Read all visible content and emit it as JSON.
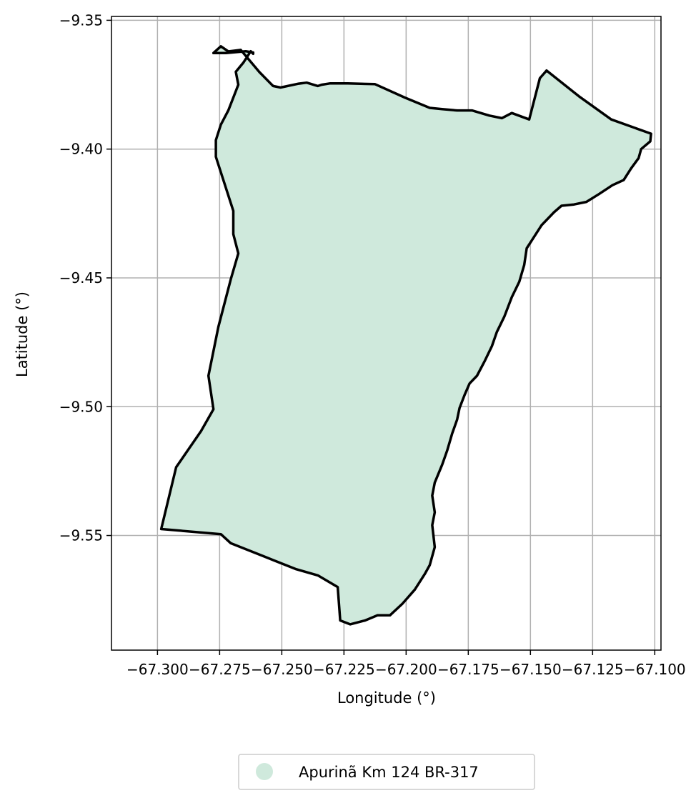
{
  "chart_data": {
    "type": "map",
    "xlabel": "Longitude (°)",
    "ylabel": "Latitude (°)",
    "xlim": [
      -67.3185,
      -67.0975
    ],
    "ylim": [
      -9.5945,
      -9.3485
    ],
    "x_ticks": [
      -67.3,
      -67.275,
      -67.25,
      -67.225,
      -67.2,
      -67.175,
      -67.15,
      -67.125,
      -67.1
    ],
    "x_tick_labels": [
      "−67.300",
      "−67.275",
      "−67.250",
      "−67.225",
      "−67.200",
      "−67.175",
      "−67.150",
      "−67.125",
      "−67.100"
    ],
    "y_ticks": [
      -9.35,
      -9.4,
      -9.45,
      -9.5,
      -9.55
    ],
    "y_tick_labels": [
      "−9.35",
      "−9.40",
      "−9.45",
      "−9.50",
      "−9.55"
    ],
    "grid": true,
    "legend": {
      "placement": "bottom-center",
      "entries": [
        {
          "label": "Apurinã Km 124 BR-317",
          "color": "#cfe9dc"
        }
      ]
    },
    "colors": {
      "fill": "#cfe9dc",
      "boundary": "#000000",
      "grid": "#b0b0b0"
    },
    "series": [
      {
        "name": "Apurinã Km 124 BR-317",
        "lon": [
          -67.2775,
          -67.2745,
          -67.2715,
          -67.2665,
          -67.259,
          -67.2535,
          -67.2505,
          -67.2432,
          -67.24,
          -67.2355,
          -67.234,
          -67.2305,
          -67.2235,
          -67.2125,
          -67.2005,
          -67.1905,
          -67.1855,
          -67.1795,
          -67.1735,
          -67.1665,
          -67.1615,
          -67.1575,
          -67.1505,
          -67.1462,
          -67.1435,
          -67.1305,
          -67.1175,
          -67.1015,
          -67.1018,
          -67.1055,
          -67.1065,
          -67.1095,
          -67.1125,
          -67.117,
          -67.1225,
          -67.1275,
          -67.1325,
          -67.1375,
          -67.1405,
          -67.1455,
          -67.1495,
          -67.1515,
          -67.1525,
          -67.1545,
          -67.1575,
          -67.1605,
          -67.1635,
          -67.1655,
          -67.1685,
          -67.1715,
          -67.1745,
          -67.1765,
          -67.1785,
          -67.1795,
          -67.1815,
          -67.1835,
          -67.1855,
          -67.1885,
          -67.1895,
          -67.1885,
          -67.1895,
          -67.1885,
          -67.1905,
          -67.1925,
          -67.1965,
          -67.2015,
          -67.2065,
          -67.2115,
          -67.2165,
          -67.2225,
          -67.2265,
          -67.2275,
          -67.2355,
          -67.2445,
          -67.2575,
          -67.2705,
          -67.2745,
          -67.2985,
          -67.2925,
          -67.2825,
          -67.2775,
          -67.2795,
          -67.2755,
          -67.2705,
          -67.2675,
          -67.2695,
          -67.2695,
          -67.2765,
          -67.2765,
          -67.2745,
          -67.2715,
          -67.2695,
          -67.2675,
          -67.2685,
          -67.2655,
          -67.2625,
          -67.2615,
          -67.2615,
          -67.2645,
          -67.2725,
          -67.2775
        ],
        "lat": [
          -9.3627,
          -9.3601,
          -9.3621,
          -9.3615,
          -9.3701,
          -9.3755,
          -9.3761,
          -9.3746,
          -9.3742,
          -9.3755,
          -9.375,
          -9.3745,
          -9.3745,
          -9.3748,
          -9.38,
          -9.384,
          -9.3845,
          -9.385,
          -9.385,
          -9.387,
          -9.388,
          -9.386,
          -9.3885,
          -9.3725,
          -9.3695,
          -9.3795,
          -9.3885,
          -9.394,
          -9.397,
          -9.4,
          -9.4035,
          -9.4075,
          -9.412,
          -9.414,
          -9.4175,
          -9.4205,
          -9.4215,
          -9.422,
          -9.4245,
          -9.4295,
          -9.4355,
          -9.4385,
          -9.445,
          -9.4515,
          -9.4575,
          -9.465,
          -9.471,
          -9.4765,
          -9.4825,
          -9.488,
          -9.491,
          -9.4955,
          -9.5005,
          -9.505,
          -9.5105,
          -9.517,
          -9.5225,
          -9.5295,
          -9.5345,
          -9.541,
          -9.546,
          -9.5545,
          -9.5615,
          -9.565,
          -9.571,
          -9.5765,
          -9.581,
          -9.581,
          -9.583,
          -9.5845,
          -9.583,
          -9.57,
          -9.5655,
          -9.563,
          -9.558,
          -9.553,
          -9.5495,
          -9.5475,
          -9.5235,
          -9.5095,
          -9.501,
          -9.488,
          -9.469,
          -9.4505,
          -9.4405,
          -9.433,
          -9.424,
          -9.403,
          -9.3965,
          -9.3905,
          -9.385,
          -9.38,
          -9.375,
          -9.37,
          -9.3665,
          -9.362,
          -9.363,
          -9.3625,
          -9.362,
          -9.3627,
          -9.3627
        ]
      }
    ]
  }
}
